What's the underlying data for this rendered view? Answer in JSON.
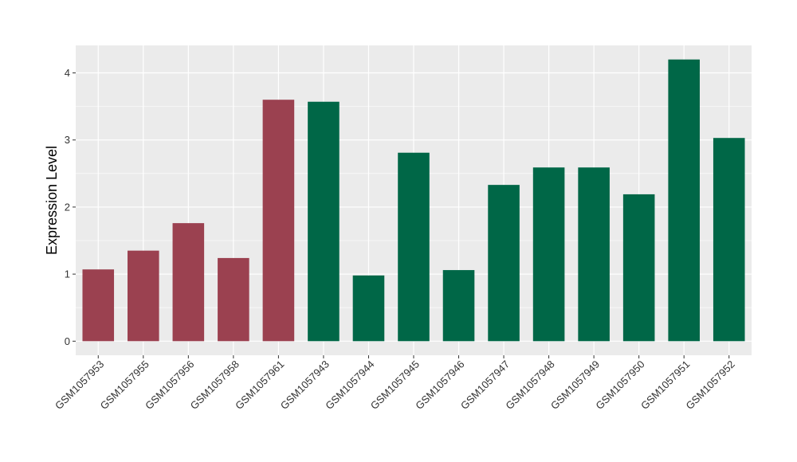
{
  "chart_data": {
    "type": "bar",
    "title": "",
    "xlabel": "",
    "ylabel": "Expression Level",
    "categories": [
      "GSM1057953",
      "GSM1057955",
      "GSM1057956",
      "GSM1057958",
      "GSM1057961",
      "GSM1057943",
      "GSM1057944",
      "GSM1057945",
      "GSM1057946",
      "GSM1057947",
      "GSM1057948",
      "GSM1057949",
      "GSM1057950",
      "GSM1057951",
      "GSM1057952"
    ],
    "values": [
      1.07,
      1.35,
      1.76,
      1.24,
      3.6,
      3.57,
      0.98,
      2.81,
      1.06,
      2.33,
      2.59,
      2.59,
      2.19,
      4.2,
      3.03
    ],
    "bar_colors": [
      "#9B4150",
      "#9B4150",
      "#9B4150",
      "#9B4150",
      "#9B4150",
      "#006747",
      "#006747",
      "#006747",
      "#006747",
      "#006747",
      "#006747",
      "#006747",
      "#006747",
      "#006747",
      "#006747"
    ],
    "yticks": [
      "0",
      "1",
      "2",
      "3",
      "4"
    ],
    "ylim": [
      -0.21,
      4.41
    ],
    "grid": true,
    "legend": "none",
    "panel_color": "#EBEBEB",
    "grid_color": "#FFFFFF"
  }
}
